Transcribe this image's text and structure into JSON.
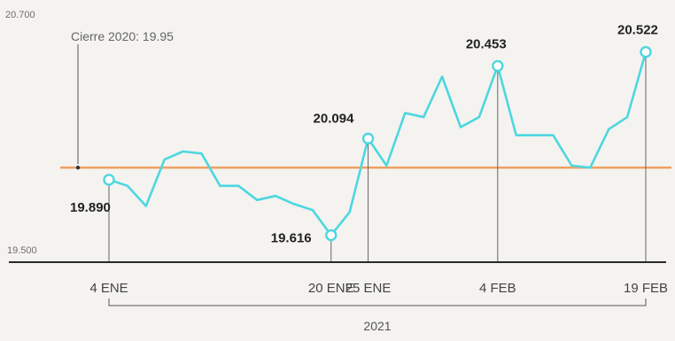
{
  "chart_data": {
    "type": "line",
    "title": "",
    "xlabel": "2021",
    "ylabel": "",
    "ylim": [
      19.5,
      20.7
    ],
    "y_ticks": [
      "20.700",
      "19.500"
    ],
    "x_ticks": [
      "4 ENE",
      "20 ENE",
      "25 ENE",
      "4 FEB",
      "19 FEB"
    ],
    "reference_line": {
      "label": "Cierre 2020: 19.95",
      "value": 19.95,
      "color": "#f0a062"
    },
    "line_color": "#4dd7df",
    "series": [
      {
        "name": "",
        "points": [
          {
            "x": "4 ENE",
            "y": 19.89
          },
          {
            "x": "",
            "y": 19.86
          },
          {
            "x": "",
            "y": 19.76
          },
          {
            "x": "",
            "y": 19.99
          },
          {
            "x": "",
            "y": 20.03
          },
          {
            "x": "",
            "y": 20.02
          },
          {
            "x": "",
            "y": 19.86
          },
          {
            "x": "",
            "y": 19.86
          },
          {
            "x": "",
            "y": 19.79
          },
          {
            "x": "",
            "y": 19.81
          },
          {
            "x": "",
            "y": 19.77
          },
          {
            "x": "",
            "y": 19.74
          },
          {
            "x": "20 ENE",
            "y": 19.616
          },
          {
            "x": "",
            "y": 19.73
          },
          {
            "x": "25 ENE",
            "y": 20.094
          },
          {
            "x": "",
            "y": 19.96
          },
          {
            "x": "",
            "y": 20.22
          },
          {
            "x": "",
            "y": 20.2
          },
          {
            "x": "",
            "y": 20.4
          },
          {
            "x": "",
            "y": 20.15
          },
          {
            "x": "",
            "y": 20.2
          },
          {
            "x": "4 FEB",
            "y": 20.453
          },
          {
            "x": "",
            "y": 20.11
          },
          {
            "x": "",
            "y": 20.11
          },
          {
            "x": "",
            "y": 20.11
          },
          {
            "x": "",
            "y": 19.96
          },
          {
            "x": "",
            "y": 19.95
          },
          {
            "x": "",
            "y": 20.14
          },
          {
            "x": "",
            "y": 20.2
          },
          {
            "x": "19 FEB",
            "y": 20.522
          }
        ]
      }
    ],
    "data_labels": [
      {
        "text": "19.890",
        "value": 19.89,
        "x": "4 ENE"
      },
      {
        "text": "19.616",
        "value": 19.616,
        "x": "20 ENE"
      },
      {
        "text": "20.094",
        "value": 20.094,
        "x": "25 ENE"
      },
      {
        "text": "20.453",
        "value": 20.453,
        "x": "4 FEB"
      },
      {
        "text": "20.522",
        "value": 20.522,
        "x": "19 FEB"
      }
    ]
  }
}
